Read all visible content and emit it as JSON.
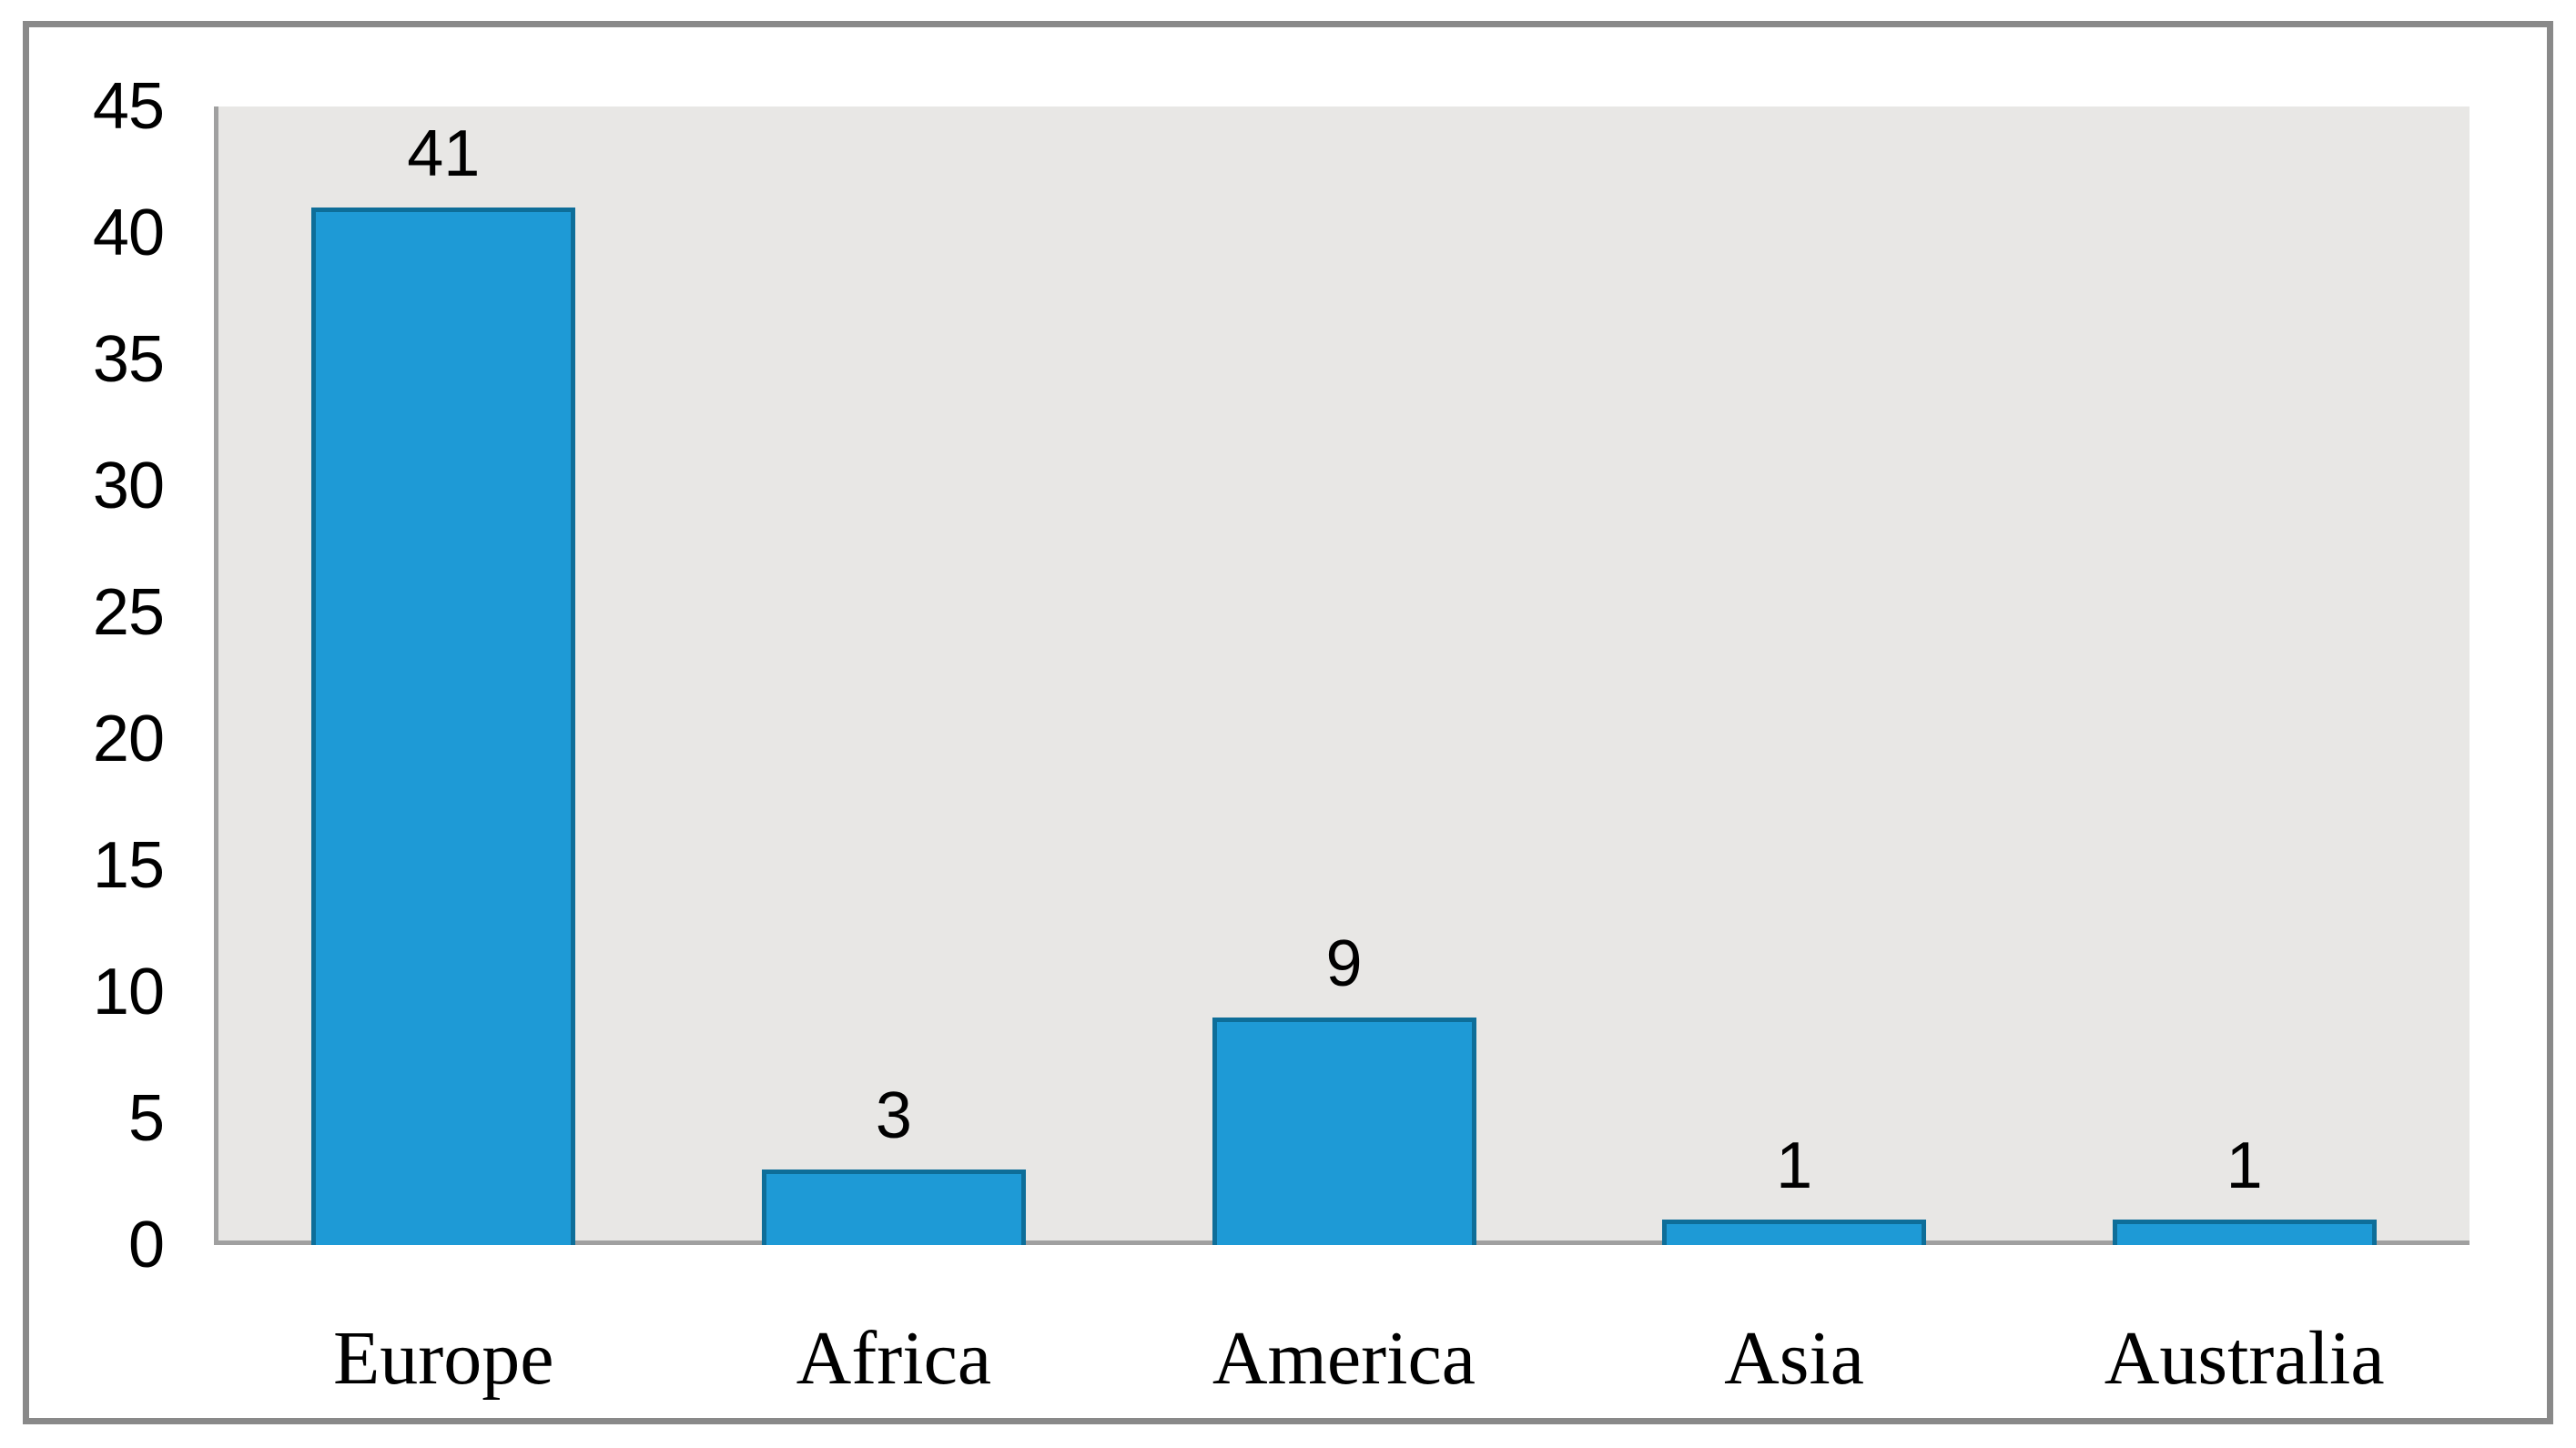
{
  "chart_data": {
    "type": "bar",
    "categories": [
      "Europe",
      "Africa",
      "America",
      "Asia",
      "Australia"
    ],
    "values": [
      41,
      3,
      9,
      1,
      1
    ],
    "data_labels": [
      "41",
      "3",
      "9",
      "1",
      "1"
    ],
    "title": "",
    "xlabel": "",
    "ylabel": "",
    "ylim": [
      0,
      45
    ],
    "ytick_step": 5,
    "ytick_labels": [
      "0",
      "5",
      "10",
      "15",
      "20",
      "25",
      "30",
      "35",
      "40",
      "45"
    ],
    "grid": false,
    "legend": false,
    "colors": {
      "bar_fill": "#1e9ad6",
      "bar_border": "#0e6e99",
      "plot_background": "#e8e7e5",
      "axis_line": "#a0a0a0",
      "frame_border": "#898989",
      "label_text": "#000000",
      "page_background": "#ffffff"
    }
  }
}
